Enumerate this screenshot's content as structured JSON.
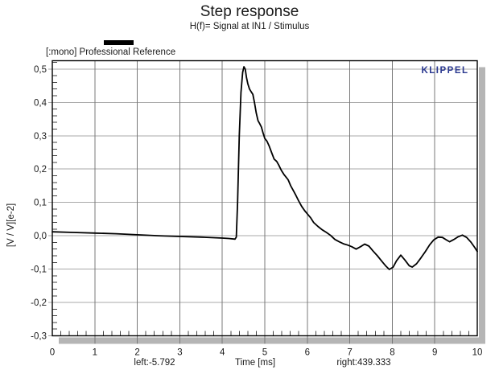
{
  "title": "Step response",
  "subtitle": "H(f)= Signal at IN1 / Stimulus",
  "legend": {
    "label": "[:mono] Professional Reference",
    "swatch_color": "#000000"
  },
  "watermark": {
    "text": "KLIPPEL",
    "color": "#2b3990"
  },
  "axes": {
    "y_label": "[V / V][e-2]",
    "x_label": "Time [ms]",
    "x_left_note": "left:-5.792",
    "x_right_note": "right:439.333",
    "y_ticks": [
      "0,5",
      "0,4",
      "0,3",
      "0,2",
      "0,1",
      "0,0",
      "-0,1",
      "-0,2",
      "-0,3"
    ],
    "x_ticks": [
      "0",
      "1",
      "2",
      "3",
      "4",
      "5",
      "6",
      "7",
      "8",
      "9",
      "10"
    ]
  },
  "colors": {
    "background": "#ffffff",
    "frame": "#000000",
    "v_grid": "#787878",
    "h_grid": "#a8a8a8",
    "shadow": "#b5b5b5",
    "curve": "#000000",
    "text": "#1a1a1a",
    "klippel_blue": "#2b3990"
  },
  "chart_data": {
    "type": "line",
    "title": "Step response",
    "subtitle": "H(f)= Signal at IN1 / Stimulus",
    "xlabel": "Time [ms]",
    "ylabel": "[V / V][e-2]",
    "xlim": [
      0,
      10
    ],
    "ylim": [
      -0.3,
      0.525
    ],
    "x_major_step": 1,
    "y_major_step": 0.1,
    "x_minor_step": 0.2,
    "y_minor_step": 0.02,
    "grid": true,
    "legend_position": "top-left",
    "annotations": [
      "left:-5.792",
      "right:439.333",
      "KLIPPEL"
    ],
    "series": [
      {
        "name": "[:mono] Professional Reference",
        "color": "#000000",
        "points": [
          [
            0.0,
            0.012
          ],
          [
            0.5,
            0.01
          ],
          [
            1.0,
            0.008
          ],
          [
            1.5,
            0.006
          ],
          [
            2.0,
            0.003
          ],
          [
            2.5,
            0.0
          ],
          [
            3.0,
            -0.002
          ],
          [
            3.5,
            -0.004
          ],
          [
            4.0,
            -0.007
          ],
          [
            4.15,
            -0.008
          ],
          [
            4.3,
            -0.01
          ],
          [
            4.33,
            -0.004
          ],
          [
            4.36,
            0.1
          ],
          [
            4.4,
            0.3
          ],
          [
            4.44,
            0.43
          ],
          [
            4.48,
            0.49
          ],
          [
            4.51,
            0.507
          ],
          [
            4.54,
            0.5
          ],
          [
            4.57,
            0.474
          ],
          [
            4.6,
            0.456
          ],
          [
            4.64,
            0.44
          ],
          [
            4.68,
            0.432
          ],
          [
            4.72,
            0.424
          ],
          [
            4.76,
            0.398
          ],
          [
            4.8,
            0.368
          ],
          [
            4.84,
            0.345
          ],
          [
            4.88,
            0.336
          ],
          [
            4.92,
            0.326
          ],
          [
            4.96,
            0.308
          ],
          [
            5.0,
            0.292
          ],
          [
            5.05,
            0.284
          ],
          [
            5.1,
            0.27
          ],
          [
            5.16,
            0.25
          ],
          [
            5.22,
            0.23
          ],
          [
            5.28,
            0.223
          ],
          [
            5.33,
            0.212
          ],
          [
            5.39,
            0.196
          ],
          [
            5.45,
            0.184
          ],
          [
            5.5,
            0.176
          ],
          [
            5.55,
            0.168
          ],
          [
            5.61,
            0.15
          ],
          [
            5.67,
            0.136
          ],
          [
            5.73,
            0.122
          ],
          [
            5.8,
            0.104
          ],
          [
            5.87,
            0.088
          ],
          [
            5.94,
            0.075
          ],
          [
            6.0,
            0.066
          ],
          [
            6.08,
            0.054
          ],
          [
            6.15,
            0.04
          ],
          [
            6.25,
            0.028
          ],
          [
            6.35,
            0.018
          ],
          [
            6.45,
            0.01
          ],
          [
            6.55,
            0.001
          ],
          [
            6.65,
            -0.011
          ],
          [
            6.75,
            -0.018
          ],
          [
            6.85,
            -0.024
          ],
          [
            6.95,
            -0.028
          ],
          [
            7.05,
            -0.033
          ],
          [
            7.15,
            -0.04
          ],
          [
            7.25,
            -0.033
          ],
          [
            7.35,
            -0.025
          ],
          [
            7.45,
            -0.031
          ],
          [
            7.55,
            -0.046
          ],
          [
            7.65,
            -0.06
          ],
          [
            7.75,
            -0.076
          ],
          [
            7.85,
            -0.091
          ],
          [
            7.93,
            -0.101
          ],
          [
            8.02,
            -0.094
          ],
          [
            8.1,
            -0.075
          ],
          [
            8.2,
            -0.058
          ],
          [
            8.3,
            -0.073
          ],
          [
            8.4,
            -0.09
          ],
          [
            8.47,
            -0.094
          ],
          [
            8.57,
            -0.084
          ],
          [
            8.67,
            -0.067
          ],
          [
            8.78,
            -0.047
          ],
          [
            8.88,
            -0.027
          ],
          [
            8.98,
            -0.012
          ],
          [
            9.08,
            -0.004
          ],
          [
            9.18,
            -0.005
          ],
          [
            9.28,
            -0.013
          ],
          [
            9.35,
            -0.018
          ],
          [
            9.45,
            -0.011
          ],
          [
            9.55,
            -0.003
          ],
          [
            9.65,
            0.002
          ],
          [
            9.75,
            -0.005
          ],
          [
            9.85,
            -0.019
          ],
          [
            9.94,
            -0.035
          ],
          [
            10.0,
            -0.047
          ]
        ]
      }
    ]
  }
}
